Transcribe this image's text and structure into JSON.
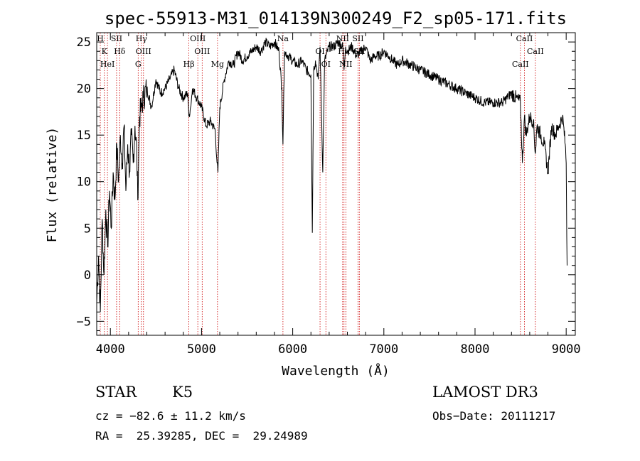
{
  "chart_data": {
    "type": "line",
    "title": "spec-55913-M31_014139N300249_F2_sp05-171.fits",
    "xlabel": "Wavelength (Å)",
    "ylabel": "Flux (relative)",
    "xlim": [
      3850,
      9100
    ],
    "ylim": [
      -6.5,
      26
    ],
    "xticks": [
      4000,
      5000,
      6000,
      7000,
      8000,
      9000
    ],
    "yticks": [
      -5,
      0,
      5,
      10,
      15,
      20,
      25
    ],
    "xtick_labels": [
      "4000",
      "5000",
      "6000",
      "7000",
      "8000",
      "9000"
    ],
    "ytick_labels": [
      "−5",
      "0",
      "5",
      "10",
      "15",
      "20",
      "25"
    ],
    "line_color": "#000000",
    "marker_color": "#cc0000",
    "series": [
      {
        "name": "flux",
        "x": [
          3850,
          3870,
          3890,
          3910,
          3930,
          3950,
          3970,
          3990,
          4010,
          4030,
          4050,
          4070,
          4090,
          4110,
          4130,
          4150,
          4170,
          4190,
          4210,
          4230,
          4250,
          4270,
          4290,
          4300,
          4320,
          4340,
          4360,
          4400,
          4450,
          4500,
          4550,
          4600,
          4650,
          4700,
          4750,
          4800,
          4850,
          4860,
          4880,
          4900,
          4950,
          5000,
          5050,
          5100,
          5150,
          5170,
          5180,
          5200,
          5250,
          5300,
          5350,
          5400,
          5450,
          5500,
          5550,
          5600,
          5650,
          5700,
          5750,
          5800,
          5850,
          5880,
          5893,
          5910,
          5950,
          6000,
          6050,
          6100,
          6150,
          6200,
          6215,
          6230,
          6250,
          6280,
          6300,
          6330,
          6350,
          6400,
          6450,
          6500,
          6550,
          6563,
          6580,
          6600,
          6650,
          6700,
          6750,
          6800,
          6850,
          6900,
          6950,
          7000,
          7050,
          7100,
          7150,
          7200,
          7300,
          7400,
          7500,
          7600,
          7700,
          7800,
          7900,
          8000,
          8100,
          8200,
          8300,
          8400,
          8450,
          8498,
          8520,
          8542,
          8560,
          8600,
          8640,
          8662,
          8680,
          8720,
          8760,
          8800,
          8840,
          8880,
          8920,
          8960,
          8990,
          9000,
          9010
        ],
        "y": [
          -3,
          2,
          -4,
          6,
          0,
          7,
          3,
          9,
          5,
          11,
          8,
          14,
          10,
          15,
          12,
          16,
          9,
          14,
          11,
          15,
          12,
          16,
          13,
          8,
          17,
          18,
          19,
          20,
          18,
          21,
          19.5,
          20,
          21,
          22,
          20,
          19,
          19.5,
          17,
          18,
          20,
          19,
          18,
          16,
          16.5,
          15.5,
          12,
          11,
          18,
          21,
          23,
          22.5,
          24,
          23,
          23.5,
          24,
          24.5,
          24,
          25,
          24.5,
          25,
          24,
          20,
          14,
          24,
          23.5,
          23,
          22.5,
          23,
          22,
          21.5,
          4.5,
          22,
          23,
          21,
          24.5,
          11,
          23,
          24.5,
          24.5,
          25,
          24.5,
          22,
          24.5,
          24,
          24.5,
          23.5,
          24,
          24.5,
          23,
          23.5,
          23.5,
          24,
          23.5,
          23,
          22.5,
          23,
          22.5,
          22,
          21.5,
          21,
          20.5,
          20,
          19.5,
          19,
          18.5,
          18.5,
          18.5,
          19.5,
          19,
          18.5,
          12,
          17,
          15,
          17,
          16.5,
          13,
          16,
          15,
          14,
          11,
          16,
          15,
          16,
          17,
          14,
          12,
          1
        ]
      }
    ],
    "line_markers": [
      {
        "x": 3889,
        "label": "H"
      },
      {
        "x": 3934,
        "label": "K"
      },
      {
        "x": 3968,
        "label": "HeI"
      },
      {
        "x": 4068,
        "label": "SII"
      },
      {
        "x": 4102,
        "label": "Hδ"
      },
      {
        "x": 4305,
        "label": "G"
      },
      {
        "x": 4340,
        "label": "Hγ"
      },
      {
        "x": 4363,
        "label": "OIII"
      },
      {
        "x": 4861,
        "label": "Hβ"
      },
      {
        "x": 4959,
        "label": "OIII"
      },
      {
        "x": 5007,
        "label": "OIII"
      },
      {
        "x": 5175,
        "label": "Mg"
      },
      {
        "x": 5893,
        "label": "Na"
      },
      {
        "x": 6300,
        "label": "OI"
      },
      {
        "x": 6364,
        "label": "OI"
      },
      {
        "x": 6548,
        "label": "NII"
      },
      {
        "x": 6563,
        "label": "Hα"
      },
      {
        "x": 6583,
        "label": "NII"
      },
      {
        "x": 6717,
        "label": "SII"
      },
      {
        "x": 6731,
        "label": "SII"
      },
      {
        "x": 8498,
        "label": "CaII"
      },
      {
        "x": 8542,
        "label": "CaII"
      },
      {
        "x": 8662,
        "label": "CaII"
      }
    ]
  },
  "info": {
    "class": "STAR",
    "subclass": "K5",
    "survey": "LAMOST DR3",
    "cz": "cz = −82.6 ± 11.2 km/s",
    "obs_date": "Obs−Date: 20111217",
    "radec": "RA =  25.39285, DEC =  29.24989"
  }
}
